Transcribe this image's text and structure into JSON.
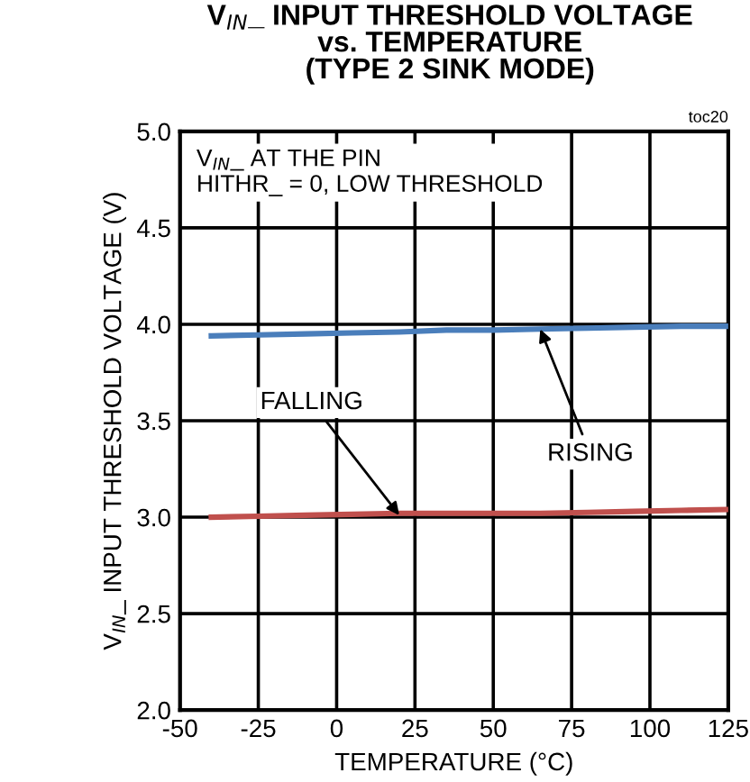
{
  "chart_data": {
    "type": "line",
    "title": "V$_{IN}$_ INPUT THRESHOLD VOLTAGE\nvs. TEMPERATURE\n(TYPE 2 SINK MODE)",
    "xlabel": "TEMPERATURE (°C)",
    "ylabel": "V$_{IN}$_ INPUT THRESHOLD VOLTAGE (V)",
    "x": [
      -40,
      -25,
      -10,
      5,
      20,
      35,
      50,
      65,
      80,
      95,
      110,
      125
    ],
    "series": [
      {
        "color": "#4a7ebb",
        "values": [
          3.94,
          3.945,
          3.95,
          3.955,
          3.96,
          3.97,
          3.97,
          3.975,
          3.98,
          3.985,
          3.99,
          3.99
        ]
      },
      {
        "color": "#c0504d",
        "values": [
          3.0,
          3.005,
          3.01,
          3.015,
          3.02,
          3.02,
          3.02,
          3.02,
          3.025,
          3.03,
          3.035,
          3.04
        ]
      }
    ],
    "annotations": [
      "V$_{IN}$_ AT THE PIN\nHITHR_ = 0, LOW THRESHOLD",
      "toc20",
      {
        "text": "FALLING",
        "x": 20,
        "y": 3.01
      },
      {
        "text": "RISING",
        "x": 65,
        "y": 3.975
      }
    ],
    "xlim": [
      -50,
      125
    ],
    "xticks": [
      -50,
      -25,
      0,
      25,
      50,
      75,
      100,
      125
    ],
    "ylim": [
      2.0,
      5.0
    ],
    "yticks": [
      {
        "value": 2.0,
        "label": "2.0"
      },
      {
        "value": 2.5,
        "label": "2.5"
      },
      {
        "value": 3.0,
        "label": "3.0"
      },
      {
        "value": 3.5,
        "label": "3.5"
      },
      {
        "value": 4.0,
        "label": "4.0"
      },
      {
        "value": 4.5,
        "label": "4.5"
      },
      {
        "value": 5.0,
        "label": "5.0"
      }
    ],
    "grid": true,
    "legend": false,
    "marker": "none",
    "line_style": "solid"
  }
}
